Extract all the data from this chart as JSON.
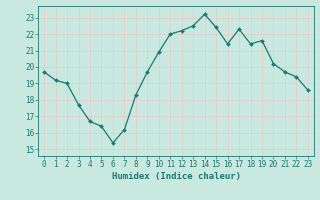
{
  "x": [
    0,
    1,
    2,
    3,
    4,
    5,
    6,
    7,
    8,
    9,
    10,
    11,
    12,
    13,
    14,
    15,
    16,
    17,
    18,
    19,
    20,
    21,
    22,
    23
  ],
  "y": [
    19.7,
    19.2,
    19.0,
    17.7,
    16.7,
    16.4,
    15.4,
    16.2,
    18.3,
    19.7,
    20.9,
    22.0,
    22.2,
    22.5,
    23.2,
    22.4,
    21.4,
    22.3,
    21.4,
    21.6,
    20.2,
    19.7,
    19.4,
    18.6
  ],
  "line_color": "#1a7a6e",
  "marker": "D",
  "markersize": 2.0,
  "linewidth": 0.9,
  "bg_color": "#c8e8e0",
  "grid_color": "#e8c8c8",
  "xlabel": "Humidex (Indice chaleur)",
  "xlabel_fontsize": 6.5,
  "xlabel_color": "#1a7a6e",
  "tick_color": "#1a7a6e",
  "yticks": [
    15,
    16,
    17,
    18,
    19,
    20,
    21,
    22,
    23
  ],
  "xticks": [
    0,
    1,
    2,
    3,
    4,
    5,
    6,
    7,
    8,
    9,
    10,
    11,
    12,
    13,
    14,
    15,
    16,
    17,
    18,
    19,
    20,
    21,
    22,
    23
  ],
  "tick_fontsize": 5.5
}
